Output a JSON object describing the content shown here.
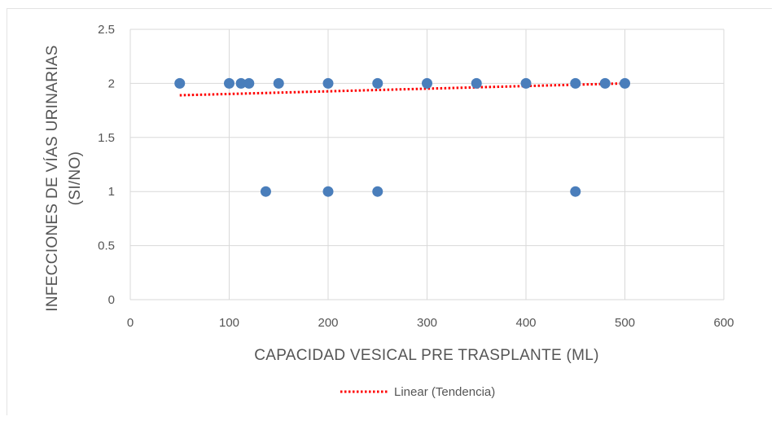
{
  "chart_data": {
    "type": "scatter",
    "xlabel": "CAPACIDAD VESICAL PRE TRASPLANTE (ML)",
    "ylabel_lines": [
      "INFECCIONES DE VÍAS URINARIAS",
      "(SI/NO)"
    ],
    "xlim": [
      0,
      600
    ],
    "ylim": [
      0,
      2.5
    ],
    "x_ticks": [
      0,
      100,
      200,
      300,
      400,
      500,
      600
    ],
    "y_ticks": [
      0,
      0.5,
      1,
      1.5,
      2,
      2.5
    ],
    "x_tick_labels": [
      "0",
      "100",
      "200",
      "300",
      "400",
      "500",
      "600"
    ],
    "y_tick_labels": [
      "0",
      "0.5",
      "1",
      "1.5",
      "2",
      "2.5"
    ],
    "grid": true,
    "points": [
      {
        "x": 50,
        "y": 2
      },
      {
        "x": 100,
        "y": 2
      },
      {
        "x": 112,
        "y": 2
      },
      {
        "x": 120,
        "y": 2
      },
      {
        "x": 150,
        "y": 2
      },
      {
        "x": 200,
        "y": 2
      },
      {
        "x": 250,
        "y": 2
      },
      {
        "x": 300,
        "y": 2
      },
      {
        "x": 350,
        "y": 2
      },
      {
        "x": 400,
        "y": 2
      },
      {
        "x": 450,
        "y": 2
      },
      {
        "x": 480,
        "y": 2
      },
      {
        "x": 500,
        "y": 2
      },
      {
        "x": 137,
        "y": 1
      },
      {
        "x": 200,
        "y": 1
      },
      {
        "x": 250,
        "y": 1
      },
      {
        "x": 450,
        "y": 1
      }
    ],
    "trendline": {
      "name": "Linear (Tendencia)",
      "x": [
        50,
        500
      ],
      "y": [
        1.89,
        2.0
      ]
    },
    "legend_position": "bottom",
    "colors": {
      "points": "#4a7ebb",
      "trendline": "#ff0000",
      "grid": "#d9d9d9"
    }
  }
}
